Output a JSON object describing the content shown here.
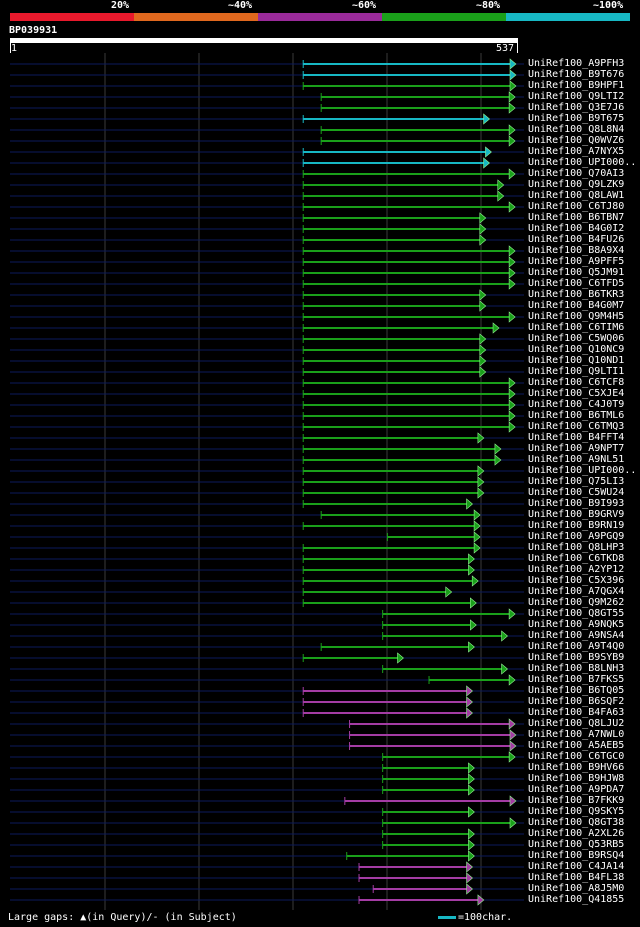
{
  "legend": [
    {
      "label": "20%",
      "color": "#e8192c"
    },
    {
      "label": "~40%",
      "color": "#e0681e"
    },
    {
      "label": "~60%",
      "color": "#9a2a9a"
    },
    {
      "label": "~80%",
      "color": "#1aa01a"
    },
    {
      "label": "~100%",
      "color": "#17b8c4"
    }
  ],
  "query": {
    "id": "BP039931",
    "start": "1",
    "end": "537"
  },
  "colors": {
    "cyan": "#17b8c4",
    "green": "#1aa01a",
    "purple": "#a43ca4",
    "track": "#0c1a5c",
    "grid": "#3a3a3a"
  },
  "chart_data": {
    "type": "alignment",
    "query_length": 537,
    "hits": [
      {
        "name": "UniRef100_A9PFH3",
        "color": "cyan",
        "start": 311,
        "end": 537
      },
      {
        "name": "UniRef100_B9T676",
        "color": "cyan",
        "start": 311,
        "end": 537
      },
      {
        "name": "UniRef100_B9HPF1",
        "color": "green",
        "start": 311,
        "end": 536
      },
      {
        "name": "UniRef100_Q9LTI2",
        "color": "green",
        "start": 330,
        "end": 535
      },
      {
        "name": "UniRef100_Q3E7J6",
        "color": "green",
        "start": 330,
        "end": 535
      },
      {
        "name": "UniRef100_B9T675",
        "color": "cyan",
        "start": 311,
        "end": 508
      },
      {
        "name": "UniRef100_Q8L8N4",
        "color": "green",
        "start": 330,
        "end": 535
      },
      {
        "name": "UniRef100_Q0WVZ6",
        "color": "green",
        "start": 330,
        "end": 535
      },
      {
        "name": "UniRef100_A7NYX5",
        "color": "cyan",
        "start": 311,
        "end": 510
      },
      {
        "name": "UniRef100_UPI000..",
        "color": "cyan",
        "start": 311,
        "end": 508
      },
      {
        "name": "UniRef100_Q70AI3",
        "color": "green",
        "start": 311,
        "end": 535
      },
      {
        "name": "UniRef100_Q9LZK9",
        "color": "green",
        "start": 311,
        "end": 523
      },
      {
        "name": "UniRef100_Q8LAW1",
        "color": "green",
        "start": 311,
        "end": 523
      },
      {
        "name": "UniRef100_C6TJ80",
        "color": "green",
        "start": 311,
        "end": 535
      },
      {
        "name": "UniRef100_B6TBN7",
        "color": "green",
        "start": 311,
        "end": 504
      },
      {
        "name": "UniRef100_B4G0I2",
        "color": "green",
        "start": 311,
        "end": 504
      },
      {
        "name": "UniRef100_B4FU26",
        "color": "green",
        "start": 311,
        "end": 504
      },
      {
        "name": "UniRef100_B8A9X4",
        "color": "green",
        "start": 311,
        "end": 535
      },
      {
        "name": "UniRef100_A9PFF5",
        "color": "green",
        "start": 311,
        "end": 535
      },
      {
        "name": "UniRef100_Q5JM91",
        "color": "green",
        "start": 311,
        "end": 535
      },
      {
        "name": "UniRef100_C6TFD5",
        "color": "green",
        "start": 311,
        "end": 535
      },
      {
        "name": "UniRef100_B6TKR3",
        "color": "green",
        "start": 311,
        "end": 504
      },
      {
        "name": "UniRef100_B4G0M7",
        "color": "green",
        "start": 311,
        "end": 504
      },
      {
        "name": "UniRef100_Q9M4H5",
        "color": "green",
        "start": 311,
        "end": 535
      },
      {
        "name": "UniRef100_C6TIM6",
        "color": "green",
        "start": 311,
        "end": 518
      },
      {
        "name": "UniRef100_C5WQ06",
        "color": "green",
        "start": 311,
        "end": 504
      },
      {
        "name": "UniRef100_Q10NC9",
        "color": "green",
        "start": 311,
        "end": 504
      },
      {
        "name": "UniRef100_Q10ND1",
        "color": "green",
        "start": 311,
        "end": 504
      },
      {
        "name": "UniRef100_Q9LTI1",
        "color": "green",
        "start": 311,
        "end": 504
      },
      {
        "name": "UniRef100_C6TCF8",
        "color": "green",
        "start": 311,
        "end": 535
      },
      {
        "name": "UniRef100_C5XJE4",
        "color": "green",
        "start": 311,
        "end": 535
      },
      {
        "name": "UniRef100_C4J0T9",
        "color": "green",
        "start": 311,
        "end": 535
      },
      {
        "name": "UniRef100_B6TML6",
        "color": "green",
        "start": 311,
        "end": 535
      },
      {
        "name": "UniRef100_C6TMQ3",
        "color": "green",
        "start": 311,
        "end": 535
      },
      {
        "name": "UniRef100_B4FFT4",
        "color": "green",
        "start": 311,
        "end": 502
      },
      {
        "name": "UniRef100_A9NPT7",
        "color": "green",
        "start": 311,
        "end": 520
      },
      {
        "name": "UniRef100_A9NL51",
        "color": "green",
        "start": 311,
        "end": 520
      },
      {
        "name": "UniRef100_UPI000..",
        "color": "green",
        "start": 311,
        "end": 502
      },
      {
        "name": "UniRef100_Q75LI3",
        "color": "green",
        "start": 311,
        "end": 502
      },
      {
        "name": "UniRef100_C5WU24",
        "color": "green",
        "start": 311,
        "end": 502
      },
      {
        "name": "UniRef100_B9I993",
        "color": "green",
        "start": 311,
        "end": 490
      },
      {
        "name": "UniRef100_B9GRV9",
        "color": "green",
        "start": 330,
        "end": 498
      },
      {
        "name": "UniRef100_B9RN19",
        "color": "green",
        "start": 311,
        "end": 498
      },
      {
        "name": "UniRef100_A9PGQ9",
        "color": "green",
        "start": 400,
        "end": 498
      },
      {
        "name": "UniRef100_Q8LHP3",
        "color": "green",
        "start": 311,
        "end": 498
      },
      {
        "name": "UniRef100_C6TKD8",
        "color": "green",
        "start": 311,
        "end": 492
      },
      {
        "name": "UniRef100_A2YP12",
        "color": "green",
        "start": 311,
        "end": 492
      },
      {
        "name": "UniRef100_C5X396",
        "color": "green",
        "start": 311,
        "end": 496
      },
      {
        "name": "UniRef100_A7QGX4",
        "color": "green",
        "start": 311,
        "end": 468
      },
      {
        "name": "UniRef100_Q9M262",
        "color": "green",
        "start": 311,
        "end": 494
      },
      {
        "name": "UniRef100_Q8GT55",
        "color": "green",
        "start": 395,
        "end": 535
      },
      {
        "name": "UniRef100_A9NQK5",
        "color": "green",
        "start": 395,
        "end": 494
      },
      {
        "name": "UniRef100_A9NSA4",
        "color": "green",
        "start": 395,
        "end": 527
      },
      {
        "name": "UniRef100_A9T4Q0",
        "color": "green",
        "start": 330,
        "end": 492
      },
      {
        "name": "UniRef100_B9SYB9",
        "color": "green",
        "start": 311,
        "end": 417
      },
      {
        "name": "UniRef100_B8LNH3",
        "color": "green",
        "start": 395,
        "end": 527
      },
      {
        "name": "UniRef100_B7FKS5",
        "color": "green",
        "start": 444,
        "end": 535
      },
      {
        "name": "UniRef100_B6TQ05",
        "color": "purple",
        "start": 311,
        "end": 490
      },
      {
        "name": "UniRef100_B6SQF2",
        "color": "purple",
        "start": 311,
        "end": 490
      },
      {
        "name": "UniRef100_B4FA63",
        "color": "purple",
        "start": 311,
        "end": 490
      },
      {
        "name": "UniRef100_Q8LJU2",
        "color": "purple",
        "start": 360,
        "end": 535
      },
      {
        "name": "UniRef100_A7NWL0",
        "color": "purple",
        "start": 360,
        "end": 545
      },
      {
        "name": "UniRef100_A5AEB5",
        "color": "purple",
        "start": 360,
        "end": 545
      },
      {
        "name": "UniRef100_C6TGC0",
        "color": "green",
        "start": 395,
        "end": 535
      },
      {
        "name": "UniRef100_B9HV66",
        "color": "green",
        "start": 395,
        "end": 492
      },
      {
        "name": "UniRef100_B9HJW8",
        "color": "green",
        "start": 395,
        "end": 492
      },
      {
        "name": "UniRef100_A9PDA7",
        "color": "green",
        "start": 395,
        "end": 492
      },
      {
        "name": "UniRef100_B7FKK9",
        "color": "purple",
        "start": 355,
        "end": 545
      },
      {
        "name": "UniRef100_Q9SKY5",
        "color": "green",
        "start": 395,
        "end": 492
      },
      {
        "name": "UniRef100_Q8GT38",
        "color": "green",
        "start": 395,
        "end": 545
      },
      {
        "name": "UniRef100_A2XL26",
        "color": "green",
        "start": 395,
        "end": 492
      },
      {
        "name": "UniRef100_Q53RB5",
        "color": "green",
        "start": 395,
        "end": 492
      },
      {
        "name": "UniRef100_B9RSQ4",
        "color": "green",
        "start": 357,
        "end": 492
      },
      {
        "name": "UniRef100_C4JA14",
        "color": "purple",
        "start": 370,
        "end": 490
      },
      {
        "name": "UniRef100_B4FL38",
        "color": "purple",
        "start": 370,
        "end": 490
      },
      {
        "name": "UniRef100_A8J5M0",
        "color": "purple",
        "start": 385,
        "end": 490
      },
      {
        "name": "UniRef100_Q41855",
        "color": "purple",
        "start": 370,
        "end": 502
      }
    ]
  },
  "footer": {
    "gaps": "Large gaps: ▲(in Query)/- (in Subject)",
    "scale": "=100char."
  }
}
